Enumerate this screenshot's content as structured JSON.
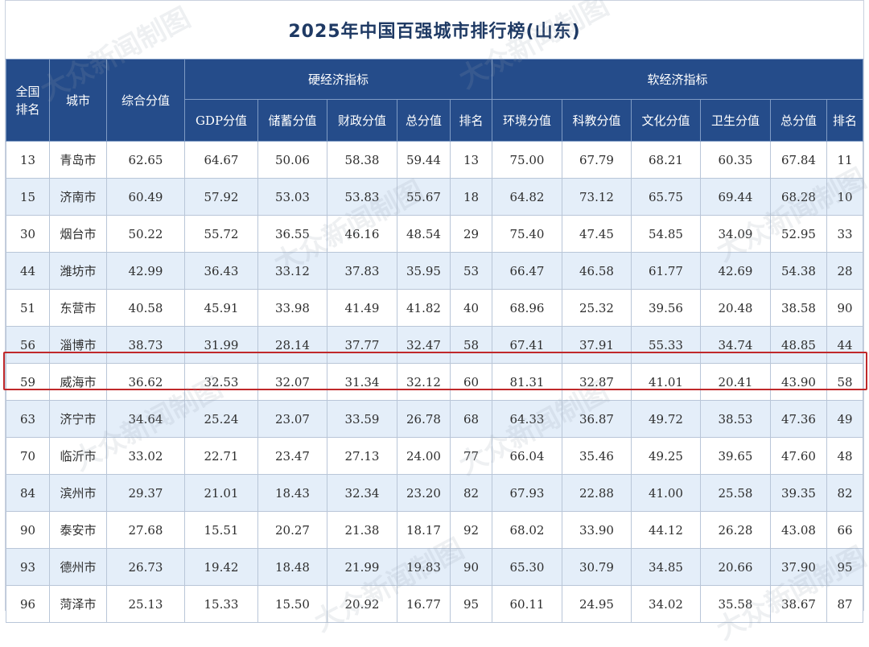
{
  "title": "2025年中国百强城市排行榜(山东)",
  "watermark": "大众新闻制图",
  "colors": {
    "header_bg": "#254c8a",
    "title": "#1f3a64",
    "stripe": "#e4eef9",
    "highlight": "#c0282a"
  },
  "headers": {
    "rank": "全国排名",
    "city": "城市",
    "total": "综合分值",
    "hard_group": "硬经济指标",
    "soft_group": "软经济指标",
    "gdp": "GDP分值",
    "savings": "储蓄分值",
    "fiscal": "财政分值",
    "hard_total": "总分值",
    "hard_rank": "排名",
    "environment": "环境分值",
    "edu": "科教分值",
    "culture": "文化分值",
    "health": "卫生分值",
    "soft_total": "总分值",
    "soft_rank": "排名"
  },
  "rows": [
    [
      "13",
      "青岛市",
      "62.65",
      "64.67",
      "50.06",
      "58.38",
      "59.44",
      "13",
      "75.00",
      "67.79",
      "68.21",
      "60.35",
      "67.84",
      "11"
    ],
    [
      "15",
      "济南市",
      "60.49",
      "57.92",
      "53.03",
      "53.83",
      "55.67",
      "18",
      "64.82",
      "73.12",
      "65.75",
      "69.44",
      "68.28",
      "10"
    ],
    [
      "30",
      "烟台市",
      "50.22",
      "55.72",
      "36.55",
      "46.16",
      "48.54",
      "29",
      "75.40",
      "47.45",
      "54.85",
      "34.09",
      "52.95",
      "33"
    ],
    [
      "44",
      "潍坊市",
      "42.99",
      "36.43",
      "33.12",
      "37.83",
      "35.95",
      "53",
      "66.47",
      "46.58",
      "61.77",
      "42.69",
      "54.38",
      "28"
    ],
    [
      "51",
      "东营市",
      "40.58",
      "45.91",
      "33.98",
      "41.49",
      "41.82",
      "40",
      "68.96",
      "25.32",
      "39.56",
      "20.48",
      "38.58",
      "90"
    ],
    [
      "56",
      "淄博市",
      "38.73",
      "31.99",
      "28.14",
      "37.77",
      "32.47",
      "58",
      "67.41",
      "37.91",
      "55.33",
      "34.74",
      "48.85",
      "44"
    ],
    [
      "59",
      "威海市",
      "36.62",
      "32.53",
      "32.07",
      "31.34",
      "32.12",
      "60",
      "81.31",
      "32.87",
      "41.01",
      "20.41",
      "43.90",
      "58"
    ],
    [
      "63",
      "济宁市",
      "34.64",
      "25.24",
      "23.07",
      "33.59",
      "26.78",
      "68",
      "64.33",
      "36.87",
      "49.72",
      "38.53",
      "47.36",
      "49"
    ],
    [
      "70",
      "临沂市",
      "33.02",
      "22.71",
      "23.47",
      "27.13",
      "24.00",
      "77",
      "66.04",
      "35.46",
      "49.25",
      "39.65",
      "47.60",
      "48"
    ],
    [
      "84",
      "滨州市",
      "29.37",
      "21.01",
      "18.43",
      "32.34",
      "23.20",
      "82",
      "67.93",
      "22.88",
      "41.00",
      "25.58",
      "39.35",
      "82"
    ],
    [
      "90",
      "泰安市",
      "27.68",
      "15.51",
      "20.27",
      "21.38",
      "18.17",
      "92",
      "68.02",
      "33.90",
      "44.12",
      "26.28",
      "43.08",
      "66"
    ],
    [
      "93",
      "德州市",
      "26.73",
      "19.42",
      "18.48",
      "21.99",
      "19.83",
      "90",
      "65.30",
      "30.79",
      "34.85",
      "20.66",
      "37.90",
      "95"
    ],
    [
      "96",
      "菏泽市",
      "25.13",
      "15.33",
      "15.50",
      "20.92",
      "16.77",
      "95",
      "60.11",
      "24.95",
      "34.02",
      "35.58",
      "38.67",
      "87"
    ]
  ],
  "highlighted_row": 6
}
